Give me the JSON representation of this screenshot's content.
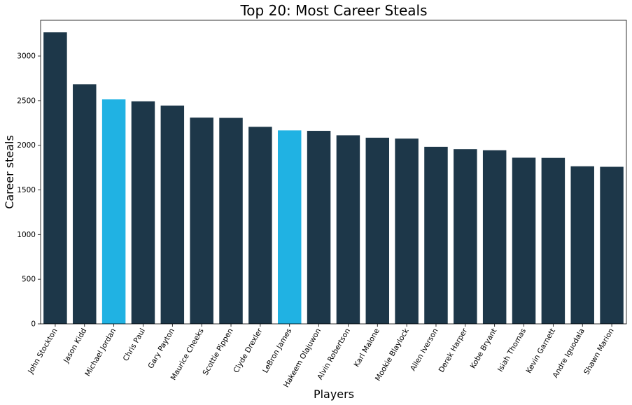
{
  "chart_data": {
    "type": "bar",
    "title": "Top 20: Most Career Steals",
    "xlabel": "Players",
    "ylabel": "Career steals",
    "ylim": [
      0,
      3400
    ],
    "yticks": [
      0,
      500,
      1000,
      1500,
      2000,
      2500,
      3000
    ],
    "grid": false,
    "categories": [
      "John Stockton",
      "Jason Kidd",
      "Michael Jordan",
      "Chris Paul",
      "Gary Payton",
      "Maurice Cheeks",
      "Scottie Pippen",
      "Clyde Drexler",
      "LeBron James",
      "Hakeem Olajuwon",
      "Alvin Robertson",
      "Karl Malone",
      "Mookie Blaylock",
      "Allen Iverson",
      "Derek Harper",
      "Kobe Bryant",
      "Isiah Thomas",
      "Kevin Garnett",
      "Andre Iguodala",
      "Shawn Marion"
    ],
    "values": [
      3265,
      2684,
      2514,
      2492,
      2445,
      2310,
      2307,
      2207,
      2167,
      2162,
      2112,
      2085,
      2075,
      1983,
      1957,
      1944,
      1861,
      1859,
      1765,
      1759
    ],
    "colors": {
      "default": "#1d3749",
      "highlight": "#20b2e3"
    },
    "highlighted": [
      "Michael Jordan",
      "LeBron James"
    ]
  }
}
